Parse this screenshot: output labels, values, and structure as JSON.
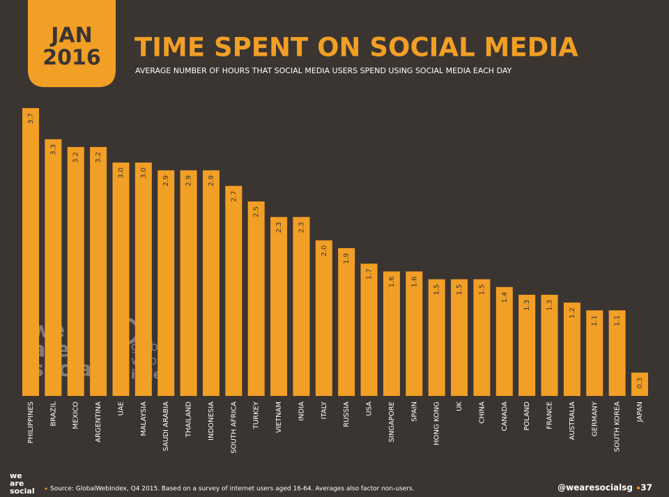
{
  "header": {
    "month": "JAN",
    "year": "2016"
  },
  "chart_data": {
    "type": "bar",
    "title": "TIME SPENT ON SOCIAL MEDIA",
    "subtitle": "AVERAGE NUMBER OF HOURS THAT SOCIAL MEDIA USERS SPEND USING SOCIAL MEDIA EACH DAY",
    "categories": [
      "PHILIPPINES",
      "BRAZIL",
      "MEXICO",
      "ARGENTINA",
      "UAE",
      "MALAYSIA",
      "SAUDI ARABIA",
      "THAILAND",
      "INDONESIA",
      "SOUTH AFRICA",
      "TURKEY",
      "VIETNAM",
      "INDIA",
      "ITALY",
      "RUSSIA",
      "USA",
      "SINGAPORE",
      "SPAIN",
      "HONG KONG",
      "UK",
      "CHINA",
      "CANADA",
      "POLAND",
      "FRANCE",
      "AUSTRALIA",
      "GERMANY",
      "SOUTH KOREA",
      "JAPAN"
    ],
    "values": [
      3.7,
      3.3,
      3.2,
      3.2,
      3.0,
      3.0,
      2.9,
      2.9,
      2.9,
      2.7,
      2.5,
      2.3,
      2.3,
      2.0,
      1.9,
      1.7,
      1.6,
      1.6,
      1.5,
      1.5,
      1.5,
      1.4,
      1.3,
      1.3,
      1.2,
      1.1,
      1.1,
      0.3
    ],
    "value_labels": [
      "3.7",
      "3.3",
      "3.2",
      "3.2",
      "3.0",
      "3.0",
      "2.9",
      "2.9",
      "2.9",
      "2.7",
      "2.5",
      "2.3",
      "2.3",
      "2.0",
      "1.9",
      "1.7",
      "1.6",
      "1.6",
      "1.5",
      "1.5",
      "1.5",
      "1.4",
      "1.3",
      "1.3",
      "1.2",
      "1.1",
      "1.1",
      "0.3"
    ],
    "color": "#f29f26"
  },
  "watermark": {
    "wearesocial": [
      "we",
      "are",
      "social"
    ],
    "gwi": [
      "global",
      "web",
      "index"
    ]
  },
  "footer": {
    "logo": [
      "we",
      "are",
      "social"
    ],
    "source": "Source: GlobalWebIndex, Q4 2015. Based on a survey of internet users aged 16-64. Averages also factor non-users.",
    "handle": "@wearesocialsg",
    "page": "37"
  }
}
